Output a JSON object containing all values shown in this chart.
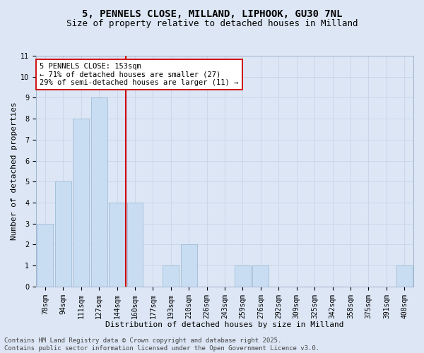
{
  "title": "5, PENNELS CLOSE, MILLAND, LIPHOOK, GU30 7NL",
  "subtitle": "Size of property relative to detached houses in Milland",
  "xlabel": "Distribution of detached houses by size in Milland",
  "ylabel": "Number of detached properties",
  "categories": [
    "78sqm",
    "94sqm",
    "111sqm",
    "127sqm",
    "144sqm",
    "160sqm",
    "177sqm",
    "193sqm",
    "210sqm",
    "226sqm",
    "243sqm",
    "259sqm",
    "276sqm",
    "292sqm",
    "309sqm",
    "325sqm",
    "342sqm",
    "358sqm",
    "375sqm",
    "391sqm",
    "408sqm"
  ],
  "values": [
    3,
    5,
    8,
    9,
    4,
    4,
    0,
    1,
    2,
    0,
    0,
    1,
    1,
    0,
    0,
    0,
    0,
    0,
    0,
    0,
    1
  ],
  "bar_color": "#c9ddf2",
  "bar_edge_color": "#a0bcd8",
  "vline_x": 4.5,
  "vline_color": "#cc0000",
  "annotation_text": "5 PENNELS CLOSE: 153sqm\n← 71% of detached houses are smaller (27)\n29% of semi-detached houses are larger (11) →",
  "annotation_box_color": "white",
  "annotation_box_edge": "#cc0000",
  "ylim": [
    0,
    11
  ],
  "yticks": [
    0,
    1,
    2,
    3,
    4,
    5,
    6,
    7,
    8,
    9,
    10,
    11
  ],
  "grid_color": "#c8d4e8",
  "bg_color": "#dce6f5",
  "footer": "Contains HM Land Registry data © Crown copyright and database right 2025.\nContains public sector information licensed under the Open Government Licence v3.0.",
  "title_fontsize": 10,
  "subtitle_fontsize": 9,
  "label_fontsize": 8,
  "tick_fontsize": 7,
  "annot_fontsize": 7.5,
  "footer_fontsize": 6.5
}
